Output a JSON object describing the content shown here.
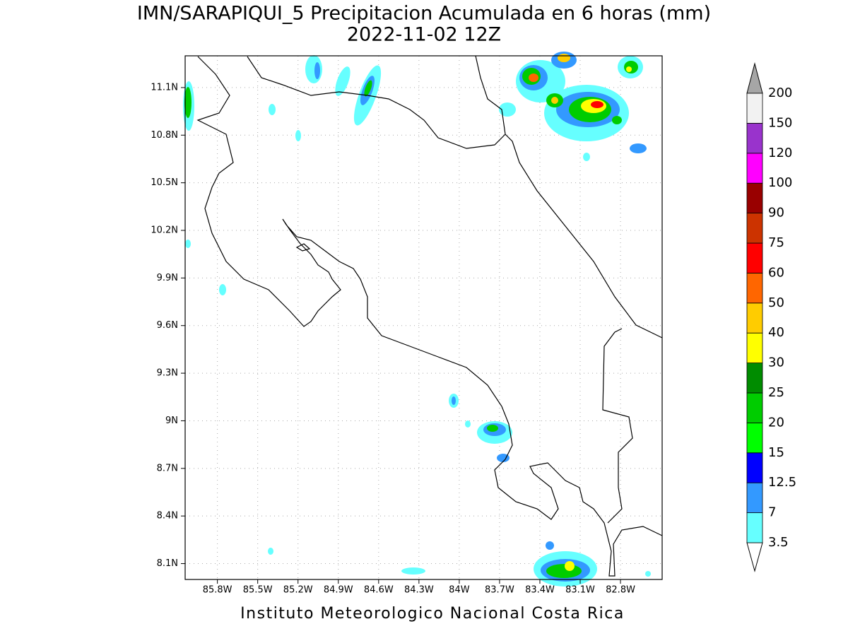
{
  "header": {
    "title": "IMN/SARAPIQUI_5 Precipitacion Acumulada en 6 horas (mm)",
    "subtitle": "2022-11-02 12Z"
  },
  "map": {
    "xlim": [
      -86.04,
      -82.49
    ],
    "ylim": [
      8.0,
      11.3
    ],
    "xticks": [
      {
        "value": -85.8,
        "label": "85.8W"
      },
      {
        "value": -85.5,
        "label": "85.5W"
      },
      {
        "value": -85.2,
        "label": "85.2W"
      },
      {
        "value": -84.9,
        "label": "84.9W"
      },
      {
        "value": -84.6,
        "label": "84.6W"
      },
      {
        "value": -84.3,
        "label": "84.3W"
      },
      {
        "value": -84.0,
        "label": "84W"
      },
      {
        "value": -83.7,
        "label": "83.7W"
      },
      {
        "value": -83.4,
        "label": "83.4W"
      },
      {
        "value": -83.1,
        "label": "83.1W"
      },
      {
        "value": -82.8,
        "label": "82.8W"
      }
    ],
    "yticks": [
      {
        "value": 11.1,
        "label": "11.1N"
      },
      {
        "value": 10.8,
        "label": "10.8N"
      },
      {
        "value": 10.5,
        "label": "10.5N"
      },
      {
        "value": 10.2,
        "label": "10.2N"
      },
      {
        "value": 9.9,
        "label": "9.9N"
      },
      {
        "value": 9.6,
        "label": "9.6N"
      },
      {
        "value": 9.3,
        "label": "9.3N"
      },
      {
        "value": 9.0,
        "label": "9N"
      },
      {
        "value": 8.7,
        "label": "8.7N"
      },
      {
        "value": 8.4,
        "label": "8.4N"
      },
      {
        "value": 8.1,
        "label": "8.1N"
      }
    ],
    "grid": true
  },
  "colorbar": {
    "levels": [
      3.5,
      7,
      12.5,
      15,
      20,
      25,
      30,
      40,
      50,
      60,
      75,
      90,
      100,
      120,
      150,
      200
    ],
    "colors": [
      "#66ffff",
      "#3399ff",
      "#0000ff",
      "#00ff00",
      "#00cc00",
      "#008c00",
      "#ffff00",
      "#ffcc00",
      "#ff6600",
      "#ff0000",
      "#cc3300",
      "#990000",
      "#ff00ff",
      "#9933cc",
      "#f2f2f2"
    ],
    "under_color": "#ffffff",
    "over_color": "#a6a6a6"
  },
  "footer": "Instituto Meteorologico Nacional Costa Rica"
}
